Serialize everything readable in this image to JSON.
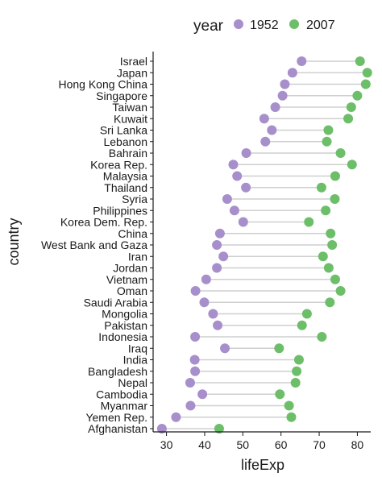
{
  "chart_data": {
    "type": "dumbbell",
    "xlabel": "lifeExp",
    "ylabel": "country",
    "xlim": [
      26.5,
      83.5
    ],
    "xticks": [
      30,
      40,
      50,
      60,
      70,
      80
    ],
    "grid": false,
    "legend": {
      "title": "year",
      "position": "top"
    },
    "series": [
      {
        "name": "1952",
        "color": "#a78fcc"
      },
      {
        "name": "2007",
        "color": "#6cbf68"
      }
    ],
    "categories": [
      "Israel",
      "Japan",
      "Hong Kong China",
      "Singapore",
      "Taiwan",
      "Kuwait",
      "Sri Lanka",
      "Lebanon",
      "Bahrain",
      "Korea Rep.",
      "Malaysia",
      "Thailand",
      "Syria",
      "Philippines",
      "Korea Dem. Rep.",
      "China",
      "West Bank and Gaza",
      "Iran",
      "Jordan",
      "Vietnam",
      "Oman",
      "Saudi Arabia",
      "Mongolia",
      "Pakistan",
      "Indonesia",
      "Iraq",
      "India",
      "Bangladesh",
      "Nepal",
      "Cambodia",
      "Myanmar",
      "Yemen Rep.",
      "Afghanistan"
    ],
    "values_1952": [
      65.4,
      63.0,
      61.0,
      60.4,
      58.5,
      55.6,
      57.6,
      55.9,
      50.9,
      47.5,
      48.5,
      50.8,
      45.9,
      47.8,
      50.1,
      44.0,
      43.2,
      44.9,
      43.2,
      40.4,
      37.6,
      39.9,
      42.2,
      43.4,
      37.5,
      45.3,
      37.4,
      37.5,
      36.2,
      39.4,
      36.3,
      32.5,
      28.8
    ],
    "values_2007": [
      80.7,
      82.6,
      82.2,
      80.0,
      78.4,
      77.6,
      72.4,
      72.0,
      75.6,
      78.6,
      74.2,
      70.6,
      74.1,
      71.7,
      67.3,
      73.0,
      73.4,
      71.0,
      72.5,
      74.2,
      75.6,
      72.8,
      66.8,
      65.5,
      70.7,
      59.5,
      64.7,
      64.1,
      63.8,
      59.7,
      62.1,
      62.7,
      43.8
    ]
  }
}
